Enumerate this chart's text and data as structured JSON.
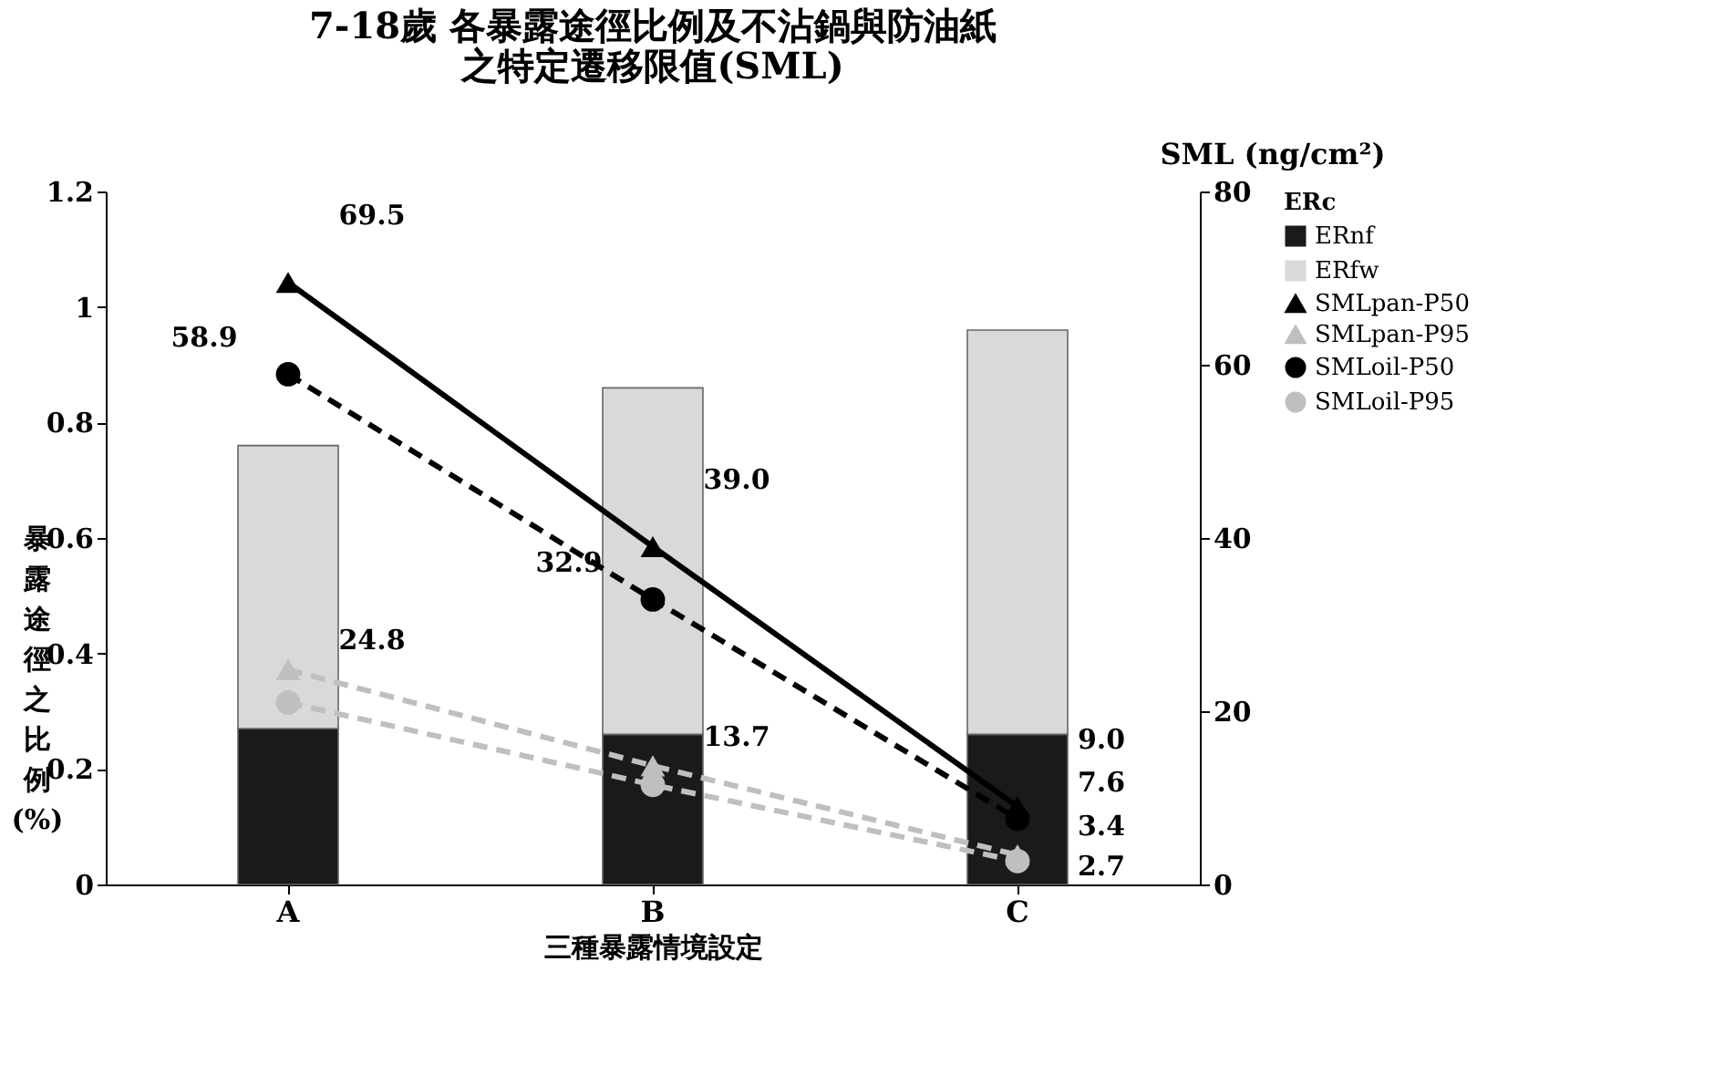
{
  "chart_data": {
    "type": "bar",
    "title": [
      "7-18歲 各暴露途徑比例及不沾鍋與防油紙",
      "之特定遷移限值(SML)"
    ],
    "xlabel": "三種暴露情境設定",
    "ylabel": "暴露途徑之比例(%)",
    "y2label": "SML  (ng/cm²)",
    "legend_title": "ERc",
    "categories": [
      "A",
      "B",
      "C"
    ],
    "stacked": true,
    "series": [
      {
        "name": "ERnf",
        "color": "#1a1a1a",
        "values": [
          0.27,
          0.26,
          0.26
        ]
      },
      {
        "name": "ERfw",
        "color": "#d9d9d9",
        "values": [
          0.49,
          0.6,
          0.7
        ]
      },
      {
        "name": "SMLpan-P50",
        "type": "line",
        "axis": "y2",
        "color": "#000000",
        "marker": "triangle",
        "line_style": "solid",
        "values": [
          69.5,
          39.0,
          9.0
        ],
        "value_labels": [
          "69.5",
          "39.0",
          "9.0"
        ]
      },
      {
        "name": "SMLpan-P95",
        "type": "line",
        "axis": "y2",
        "color": "#bfbfbf",
        "marker": "triangle",
        "line_style": "dashed",
        "values": [
          24.8,
          13.7,
          3.4
        ],
        "value_labels": [
          "24.8",
          "13.7",
          "3.4"
        ]
      },
      {
        "name": "SMLoil-P50",
        "type": "line",
        "axis": "y2",
        "color": "#000000",
        "marker": "circle",
        "line_style": "dashed",
        "values": [
          58.9,
          32.9,
          7.6
        ],
        "value_labels": [
          "58.9",
          "32.9",
          "7.6"
        ]
      },
      {
        "name": "SMLoil-P95",
        "type": "line",
        "axis": "y2",
        "color": "#bfbfbf",
        "marker": "circle",
        "line_style": "dashed",
        "values": [
          21.0,
          11.5,
          2.7
        ],
        "value_labels": [
          null,
          null,
          "2.7"
        ]
      }
    ],
    "ylim": [
      0,
      1.2
    ],
    "yticks": [
      0,
      0.2,
      0.4,
      0.6,
      0.8,
      1,
      1.2
    ],
    "y2lim": [
      0,
      80
    ],
    "y2ticks": [
      0,
      20,
      40,
      60,
      80
    ],
    "grid": false,
    "legend": "right"
  }
}
